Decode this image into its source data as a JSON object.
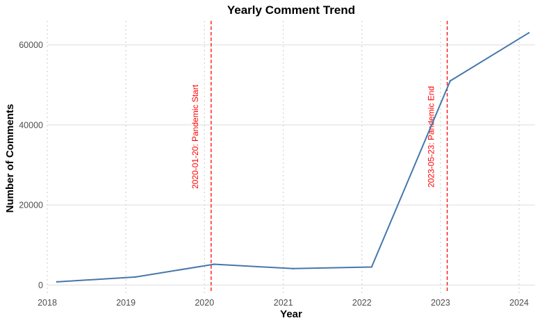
{
  "chart_data": {
    "type": "line",
    "title": "Yearly Comment Trend",
    "xlabel": "Year",
    "ylabel": "Number of Comments",
    "x_axis": {
      "type": "date",
      "range": [
        "2018-01-01",
        "2024-03-15"
      ],
      "ticks": [
        {
          "date": "2018-01-01",
          "label": "2018"
        },
        {
          "date": "2019-01-01",
          "label": "2019"
        },
        {
          "date": "2020-01-01",
          "label": "2020"
        },
        {
          "date": "2021-01-01",
          "label": "2021"
        },
        {
          "date": "2022-01-01",
          "label": "2022"
        },
        {
          "date": "2023-01-01",
          "label": "2023"
        },
        {
          "date": "2024-01-01",
          "label": "2024"
        }
      ]
    },
    "ylim": [
      -2000,
      66000
    ],
    "y_ticks": [
      {
        "value": 0,
        "label": "0"
      },
      {
        "value": 20000,
        "label": "20000"
      },
      {
        "value": 40000,
        "label": "40000"
      },
      {
        "value": 60000,
        "label": "60000"
      }
    ],
    "grid": {
      "horizontal": "solid",
      "vertical": "dotted"
    },
    "series": [
      {
        "color": "#4477aa",
        "points": [
          {
            "x": "2018-02-15",
            "y": 800
          },
          {
            "x": "2019-02-15",
            "y": 2000
          },
          {
            "x": "2020-02-15",
            "y": 5200
          },
          {
            "x": "2021-02-15",
            "y": 4100
          },
          {
            "x": "2022-02-15",
            "y": 4500
          },
          {
            "x": "2023-02-15",
            "y": 51000
          },
          {
            "x": "2024-02-15",
            "y": 63000
          }
        ]
      }
    ],
    "annotations": [
      {
        "x": "2020-02-01",
        "label": "2020-01-20: Pandemic Start",
        "color": "#ff0000"
      },
      {
        "x": "2023-02-01",
        "label": "2023-05-23: Pandemic End",
        "color": "#ff0000"
      }
    ]
  }
}
